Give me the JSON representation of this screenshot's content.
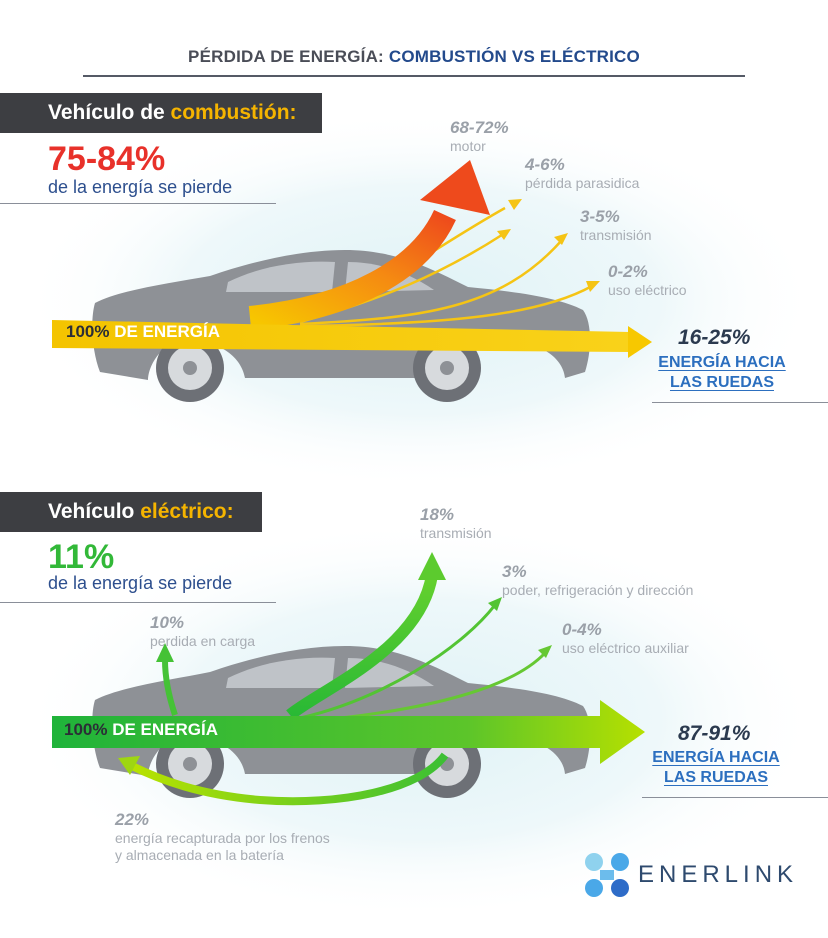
{
  "title": {
    "prefix": "PÉRDIDA DE ENERGÍA:",
    "highlight": "COMBUSTIÓN VS ELÉCTRICO"
  },
  "combustion": {
    "band_prefix": "Vehículo de",
    "band_highlight": "combustión:",
    "lost_pct": "75-84%",
    "lost_text": "de la energía se pierde",
    "input_pct": "100%",
    "input_label": "DE ENERGÍA",
    "losses": [
      {
        "pct": "68-72%",
        "label": "motor"
      },
      {
        "pct": "4-6%",
        "label": "pérdida parasidica"
      },
      {
        "pct": "3-5%",
        "label": "transmisión"
      },
      {
        "pct": "0-2%",
        "label": "uso eléctrico"
      }
    ],
    "wheels_pct": "16-25%",
    "wheels_line1": "ENERGÍA HACIA",
    "wheels_line2": "LAS RUEDAS"
  },
  "electric": {
    "band_prefix": "Vehículo",
    "band_highlight": "eléctrico:",
    "lost_pct": "11%",
    "lost_text": "de la energía se pierde",
    "input_pct": "100%",
    "input_label": "DE ENERGÍA",
    "losses": [
      {
        "pct": "18%",
        "label": "transmisión"
      },
      {
        "pct": "3%",
        "label": "poder, refrigeración y dirección"
      },
      {
        "pct": "0-4%",
        "label": "uso eléctrico auxiliar"
      },
      {
        "pct": "10%",
        "label": "perdida en carga"
      }
    ],
    "regen_pct": "22%",
    "regen_line1": "energía recapturada por los frenos",
    "regen_line2": "y almacenada en la batería",
    "wheels_pct": "87-91%",
    "wheels_line1": "ENERGÍA HACIA",
    "wheels_line2": "LAS RUEDAS"
  },
  "logo": {
    "text": "ENERLINK",
    "icon": "enerlink-logo-icon"
  },
  "colors": {
    "combustion_flow": "#f7c600",
    "combustion_motor": "#f04a1c",
    "electric_flow": "#2ebd35",
    "electric_tip": "#b4e100",
    "loss_red": "#e8312a",
    "brand_blue": "#2c6fbf"
  }
}
